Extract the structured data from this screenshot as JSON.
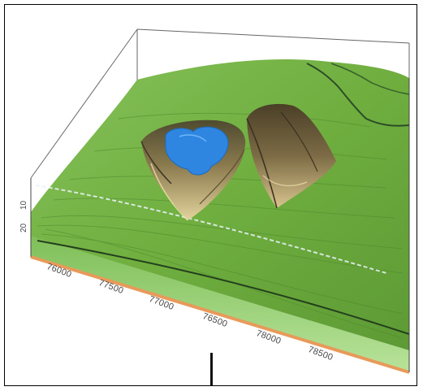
{
  "figure": {
    "x_tick_labels": [
      "76000",
      "77500",
      "77000",
      "76500",
      "78000",
      "78500"
    ],
    "z_tick_labels": [
      "10",
      "20"
    ],
    "colors": {
      "terrain_green": "#6fae3f",
      "terrain_dark_green": "#3f7a2a",
      "pit_sand": "#c8b27a",
      "pit_dark": "#6a5a3a",
      "water_blue": "#2f86e0",
      "box_line": "#555555",
      "base_edge_orange": "#e89a5a",
      "base_edge_green": "#9fd07a"
    },
    "icons": {
      "water": "pond-icon",
      "pits": "excavation-pit-icon"
    }
  }
}
